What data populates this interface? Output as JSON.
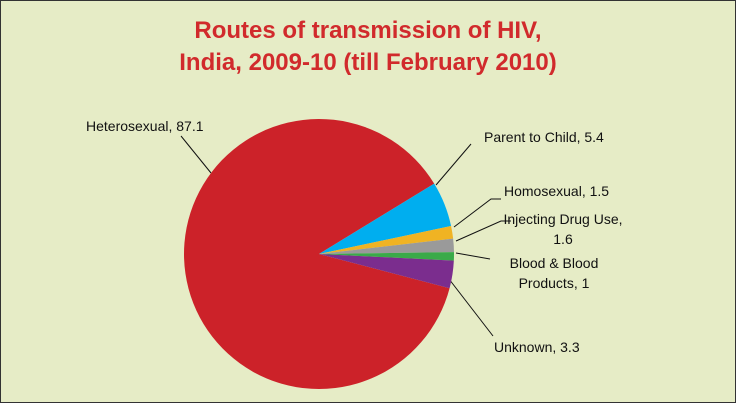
{
  "chart_data": {
    "type": "pie",
    "title": [
      "Routes of transmission of HIV,",
      "India, 2009-10 (till February 2010)"
    ],
    "categories": [
      "Heterosexual",
      "Parent to Child",
      "Homosexual",
      "Injecting Drug Use",
      "Blood & Blood Products",
      "Unknown"
    ],
    "values": [
      87.1,
      5.4,
      1.5,
      1.6,
      1,
      3.3
    ],
    "value_labels": [
      "Heterosexual, 87.1",
      "Parent to Child, 5.4",
      "Homosexual, 1.5",
      "Injecting Drug Use, 1.6",
      "Blood & Blood Products, 1",
      "Unknown, 3.3"
    ],
    "colors": [
      "#cc2229",
      "#00aeef",
      "#f0b323",
      "#9a9a9a",
      "#3aaa49",
      "#7b2d8e"
    ]
  }
}
